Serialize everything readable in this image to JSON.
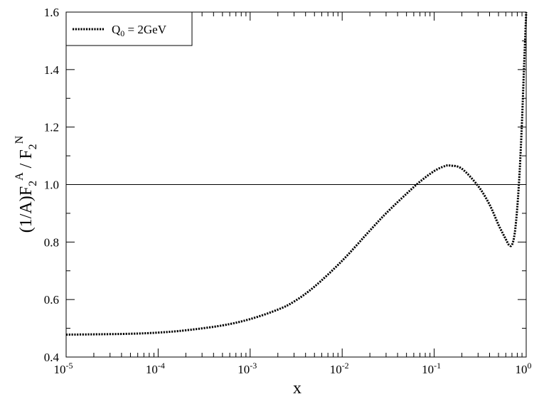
{
  "chart_data": {
    "type": "line",
    "title": "",
    "xlabel": "x",
    "ylabel": "(1/A)F2A / F2N",
    "x_scale": "log",
    "xlim": [
      1e-05,
      1
    ],
    "ylim": [
      0.4,
      1.6
    ],
    "x_ticks": [
      {
        "value": 1e-05,
        "base": "10",
        "exp": "-5"
      },
      {
        "value": 0.0001,
        "base": "10",
        "exp": "-4"
      },
      {
        "value": 0.001,
        "base": "10",
        "exp": "-3"
      },
      {
        "value": 0.01,
        "base": "10",
        "exp": "-2"
      },
      {
        "value": 0.1,
        "base": "10",
        "exp": "-1"
      },
      {
        "value": 1,
        "base": "10",
        "exp": "0"
      }
    ],
    "y_ticks": [
      {
        "value": 0.4,
        "label": "0.4"
      },
      {
        "value": 0.6,
        "label": "0.6"
      },
      {
        "value": 0.8,
        "label": "0.8"
      },
      {
        "value": 1.0,
        "label": "1.0"
      },
      {
        "value": 1.2,
        "label": "1.2"
      },
      {
        "value": 1.4,
        "label": "1.4"
      },
      {
        "value": 1.6,
        "label": "1.6"
      }
    ],
    "reference_line": {
      "y": 1.0
    },
    "legend_position": "top-left",
    "grid": false,
    "series": [
      {
        "name": "Q0 = 2GeV",
        "style": "dotted",
        "x": [
          1e-05,
          2e-05,
          5e-05,
          0.0001,
          0.0002,
          0.0005,
          0.001,
          0.002,
          0.003,
          0.005,
          0.01,
          0.02,
          0.03,
          0.05,
          0.07,
          0.1,
          0.13,
          0.15,
          0.2,
          0.3,
          0.4,
          0.5,
          0.6,
          0.65,
          0.7,
          0.75,
          0.8,
          0.85,
          0.9,
          0.95,
          1.0
        ],
        "y": [
          0.478,
          0.479,
          0.481,
          0.485,
          0.493,
          0.51,
          0.532,
          0.565,
          0.593,
          0.645,
          0.735,
          0.84,
          0.9,
          0.968,
          1.01,
          1.047,
          1.064,
          1.066,
          1.055,
          0.995,
          0.93,
          0.86,
          0.81,
          0.79,
          0.79,
          0.83,
          0.92,
          1.05,
          1.22,
          1.42,
          1.6
        ]
      }
    ]
  },
  "legend": {
    "q_main": "Q",
    "q_sub": "0",
    "q_rest": " = 2GeV"
  },
  "axis_title": {
    "x": "x",
    "y_part1": "(1/A)F",
    "y_sub1": "2",
    "y_sup1": "A",
    "y_part2": " / F",
    "y_sub2": "2",
    "y_sup2": "N"
  }
}
